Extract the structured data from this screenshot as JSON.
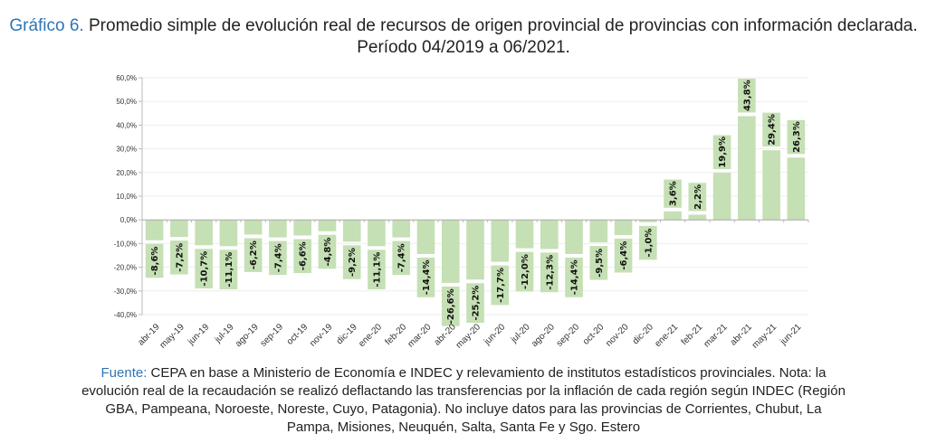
{
  "title": {
    "lead": "Gráfico 6.",
    "text": " Promedio simple de evolución real de recursos de origen provincial de provincias con información declarada. Período 04/2019 a 06/2021."
  },
  "note": {
    "lead": "Fuente:",
    "text": " CEPA en base a Ministerio de Economía e INDEC y relevamiento de institutos estadísticos provinciales. Nota: la evolución real de la recaudación se realizó deflactando las transferencias por la inflación de cada región según INDEC (Región GBA, Pampeana, Noroeste, Noreste, Cuyo, Patagonia). No incluye datos para las provincias de Corrientes, Chubut, La Pampa, Misiones, Neuquén, Salta, Santa Fe y Sgo. Estero"
  },
  "colors": {
    "bar": "#c5e0b4",
    "title_accent": "#2e75b6"
  },
  "chart_data": {
    "type": "bar",
    "title": "Promedio simple de evolución real de recursos de origen provincial",
    "xlabel": "",
    "ylabel": "",
    "ylim": [
      -40,
      60
    ],
    "yticks": [
      60,
      50,
      40,
      30,
      20,
      10,
      0,
      -10,
      -20,
      -30,
      -40
    ],
    "ytick_labels": [
      "60,0%",
      "50,0%",
      "40,0%",
      "30,0%",
      "20,0%",
      "10,0%",
      "0,0%",
      "-10,0%",
      "-20,0%",
      "-30,0%",
      "-40,0%"
    ],
    "grid": true,
    "categories": [
      "abr-19",
      "may-19",
      "jun-19",
      "jul-19",
      "ago-19",
      "sep-19",
      "oct-19",
      "nov-19",
      "dic-19",
      "ene-20",
      "feb-20",
      "mar-20",
      "abr-20",
      "may-20",
      "jun-20",
      "jul-20",
      "ago-20",
      "sep-20",
      "oct-20",
      "nov-20",
      "dic-20",
      "ene-21",
      "feb-21",
      "mar-21",
      "abr-21",
      "may-21",
      "jun-21"
    ],
    "values": [
      -8.6,
      -7.2,
      -10.7,
      -11.1,
      -6.2,
      -7.4,
      -6.6,
      -4.8,
      -9.2,
      -11.1,
      -7.4,
      -14.4,
      -26.6,
      -25.2,
      -17.7,
      -12.0,
      -12.3,
      -14.4,
      -9.5,
      -6.4,
      -1.0,
      3.6,
      2.2,
      19.9,
      43.8,
      29.4,
      26.3
    ],
    "data_labels": [
      "-8,6%",
      "-7,2%",
      "-10,7%",
      "-11,1%",
      "-6,2%",
      "-7,4%",
      "-6,6%",
      "-4,8%",
      "-9,2%",
      "-11,1%",
      "-7,4%",
      "-14,4%",
      "-26,6%",
      "-25,2%",
      "-17,7%",
      "-12,0%",
      "-12,3%",
      "-14,4%",
      "-9,5%",
      "-6,4%",
      "-1,0%",
      "3,6%",
      "2,2%",
      "19,9%",
      "43,8%",
      "29,4%",
      "26,3%"
    ]
  }
}
